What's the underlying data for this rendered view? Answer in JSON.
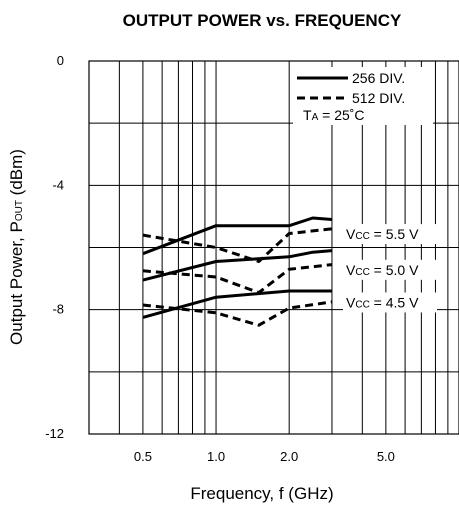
{
  "chart_data": {
    "type": "line",
    "title": "OUTPUT POWER vs. FREQUENCY",
    "xlabel": "Frequency, f (GHz)",
    "ylabel": {
      "main": "Output Power, P",
      "sub": "OUT",
      "unit": " (dBm)"
    },
    "x_scale": "log",
    "xlim": [
      0.3,
      10
    ],
    "ylim": [
      -12,
      0
    ],
    "x_ticks": [
      {
        "value": 0.5,
        "label": "0.5"
      },
      {
        "value": 1.0,
        "label": "1.0"
      },
      {
        "value": 2.0,
        "label": "2.0"
      },
      {
        "value": 5.0,
        "label": "5.0"
      }
    ],
    "y_ticks": [
      {
        "value": 0,
        "label": "0"
      },
      {
        "value": -4,
        "label": "-4"
      },
      {
        "value": -8,
        "label": "-8"
      },
      {
        "value": -12,
        "label": "-12"
      }
    ],
    "grid": true,
    "legend_position": "top-right",
    "legend": [
      {
        "label": "256 DIV.",
        "style": "solid"
      },
      {
        "label": "512 DIV.",
        "style": "dashed"
      }
    ],
    "condition": {
      "main": "T",
      "sub": "A",
      "rest": " = 25˚C"
    },
    "vcc_labels": [
      {
        "main": "V",
        "sub": "CC",
        "rest": " = 5.5 V",
        "y": -5.6
      },
      {
        "main": "V",
        "sub": "CC",
        "rest": " = 5.0 V",
        "y": -6.75
      },
      {
        "main": "V",
        "sub": "CC",
        "rest": " = 4.5 V",
        "y": -7.8
      }
    ],
    "series": [
      {
        "group": "5.5 V",
        "style": "solid",
        "x": [
          0.5,
          1.0,
          2.0,
          2.5,
          3.0
        ],
        "y": [
          -6.2,
          -5.3,
          -5.3,
          -5.05,
          -5.1
        ]
      },
      {
        "group": "5.5 V",
        "style": "dashed",
        "x": [
          0.5,
          1.0,
          1.5,
          2.0,
          3.0
        ],
        "y": [
          -5.6,
          -6.0,
          -6.45,
          -5.55,
          -5.4
        ]
      },
      {
        "group": "5.0 V",
        "style": "solid",
        "x": [
          0.5,
          1.0,
          2.0,
          2.5,
          3.0
        ],
        "y": [
          -7.05,
          -6.45,
          -6.3,
          -6.15,
          -6.1
        ]
      },
      {
        "group": "5.0 V",
        "style": "dashed",
        "x": [
          0.5,
          1.0,
          1.5,
          2.0,
          3.0
        ],
        "y": [
          -6.75,
          -6.95,
          -7.45,
          -6.7,
          -6.55
        ]
      },
      {
        "group": "4.5 V",
        "style": "solid",
        "x": [
          0.5,
          1.0,
          2.0,
          3.0
        ],
        "y": [
          -8.25,
          -7.6,
          -7.4,
          -7.4
        ]
      },
      {
        "group": "4.5 V",
        "style": "dashed",
        "x": [
          0.5,
          1.0,
          1.5,
          2.0,
          3.0
        ],
        "y": [
          -7.85,
          -8.1,
          -8.5,
          -7.95,
          -7.75
        ]
      }
    ]
  }
}
